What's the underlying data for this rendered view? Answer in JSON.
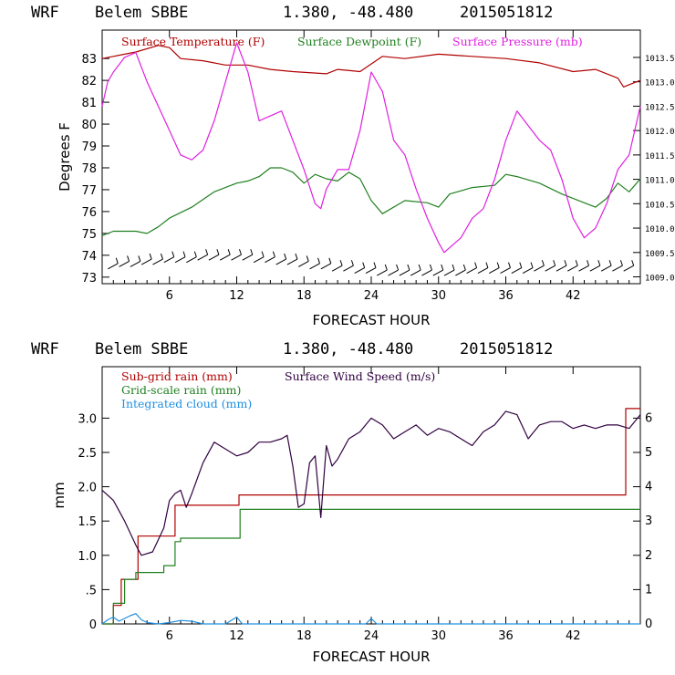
{
  "top_panel": {
    "header": {
      "model": "WRF",
      "station": "Belem SBBE",
      "coords": "1.380, -48.480",
      "run": "2015051812"
    },
    "xlabel": "FORECAST HOUR",
    "ylabel": "Degrees F",
    "x_ticks": [
      "6",
      "12",
      "18",
      "24",
      "30",
      "36",
      "42"
    ],
    "y_ticks": [
      "73",
      "74",
      "75",
      "76",
      "77",
      "78",
      "79",
      "80",
      "81",
      "82",
      "83"
    ],
    "y2_ticks": [
      "1009.0",
      "1009.5",
      "1010.0",
      "1010.5",
      "1011.0",
      "1011.5",
      "1012.0",
      "1012.5",
      "1013.0",
      "1013.5"
    ],
    "legend": [
      {
        "label": "Surface Temperature (F)",
        "color": "#b00000"
      },
      {
        "label": "Surface Dewpoint (F)",
        "color": "#208020"
      },
      {
        "label": "Surface Pressure (mb)",
        "color": "#e020e0"
      }
    ]
  },
  "bottom_panel": {
    "header": {
      "model": "WRF",
      "station": "Belem SBBE",
      "coords": "1.380, -48.480",
      "run": "2015051812"
    },
    "xlabel": "FORECAST HOUR",
    "ylabel": "mm",
    "x_ticks": [
      "6",
      "12",
      "18",
      "24",
      "30",
      "36",
      "42"
    ],
    "y_ticks": [
      "0",
      ".5",
      "1.0",
      "1.5",
      "2.0",
      "2.5",
      "3.0"
    ],
    "y2_ticks": [
      "0",
      "1",
      "2",
      "3",
      "4",
      "5",
      "6"
    ],
    "legend": [
      {
        "label": "Sub-grid rain (mm)",
        "color": "#b00000"
      },
      {
        "label": "Surface Wind Speed (m/s)",
        "color": "#300040"
      },
      {
        "label": "Grid-scale rain (mm)",
        "color": "#208020"
      },
      {
        "label": "Integrated cloud (mm)",
        "color": "#2090e0"
      }
    ]
  },
  "chart_data": [
    {
      "type": "line",
      "xlabel": "FORECAST HOUR",
      "ylabel": "Degrees F",
      "xlim": [
        0,
        48
      ],
      "ylim": [
        72.7,
        84.3
      ],
      "y2lim": [
        1008.86,
        1014.06
      ],
      "series": [
        {
          "name": "Surface Temperature (F)",
          "axis": "left",
          "color": "#b00000",
          "x": [
            0,
            1,
            3,
            5,
            6,
            7,
            9,
            11,
            13,
            15,
            17,
            20,
            21,
            23,
            25,
            27,
            30,
            33,
            36,
            39,
            42,
            44,
            46,
            46.5,
            48
          ],
          "y": [
            83.0,
            83.1,
            83.3,
            83.6,
            83.5,
            83.0,
            82.9,
            82.7,
            82.7,
            82.5,
            82.4,
            82.3,
            82.5,
            82.4,
            83.1,
            83.0,
            83.2,
            83.1,
            83.0,
            82.8,
            82.4,
            82.5,
            82.1,
            81.7,
            82.0
          ]
        },
        {
          "name": "Surface Dewpoint (F)",
          "axis": "left",
          "color": "#208020",
          "x": [
            0,
            1,
            2,
            3,
            4,
            5,
            6,
            8,
            10,
            12,
            13,
            14,
            15,
            16,
            17,
            18,
            19,
            20,
            21,
            22,
            23,
            24,
            25,
            27,
            29,
            30,
            31,
            33,
            35,
            36,
            37,
            39,
            41,
            43,
            44,
            45,
            46,
            47,
            48
          ],
          "y": [
            74.9,
            75.1,
            75.1,
            75.1,
            75.0,
            75.3,
            75.7,
            76.2,
            76.9,
            77.3,
            77.4,
            77.6,
            78.0,
            78.0,
            77.8,
            77.3,
            77.7,
            77.5,
            77.4,
            77.8,
            77.5,
            76.5,
            75.9,
            76.5,
            76.4,
            76.2,
            76.8,
            77.1,
            77.2,
            77.7,
            77.6,
            77.3,
            76.8,
            76.4,
            76.2,
            76.6,
            77.3,
            76.9,
            77.5
          ]
        },
        {
          "name": "Surface Pressure (mb)",
          "axis": "right",
          "color": "#e020e0",
          "x": [
            0,
            0.5,
            1,
            2,
            3,
            4,
            5,
            6,
            7,
            8,
            9,
            10,
            11,
            12,
            13,
            14,
            15,
            16,
            17,
            18,
            19,
            19.5,
            20,
            21,
            22,
            23,
            24,
            25,
            26,
            27,
            28,
            29,
            30,
            30.5,
            31,
            32,
            33,
            34,
            35,
            36,
            37,
            38,
            39,
            40,
            41,
            42,
            43,
            44,
            45,
            46,
            47,
            48
          ],
          "y": [
            1012.5,
            1013.0,
            1013.2,
            1013.5,
            1013.6,
            1013.0,
            1012.5,
            1012.0,
            1011.5,
            1011.4,
            1011.6,
            1012.2,
            1013.0,
            1013.8,
            1013.2,
            1012.2,
            1012.3,
            1012.4,
            1011.8,
            1011.2,
            1010.5,
            1010.4,
            1010.8,
            1011.2,
            1011.2,
            1012.0,
            1013.2,
            1012.8,
            1011.8,
            1011.5,
            1010.8,
            1010.2,
            1009.7,
            1009.5,
            1009.6,
            1009.8,
            1010.2,
            1010.4,
            1011.0,
            1011.8,
            1012.4,
            1012.1,
            1011.8,
            1011.6,
            1011.0,
            1010.2,
            1009.8,
            1010.0,
            1010.5,
            1011.2,
            1011.5,
            1012.5
          ]
        },
        {
          "name": "Wind barbs",
          "axis": "left",
          "color": "#000000",
          "x": [
            1,
            2,
            3,
            4,
            5,
            6,
            7,
            8,
            9,
            10,
            11,
            12,
            13,
            14,
            15,
            16,
            17,
            18,
            19,
            20,
            21,
            22,
            23,
            24,
            25,
            26,
            27,
            28,
            29,
            30,
            31,
            32,
            33,
            34,
            35,
            36,
            37,
            38,
            39,
            40,
            41,
            42,
            43,
            44,
            45,
            46,
            47
          ],
          "y": [
            73.5,
            73.6,
            73.6,
            73.7,
            73.7,
            73.8,
            73.8,
            73.8,
            73.9,
            73.9,
            73.9,
            73.9,
            73.9,
            73.8,
            73.8,
            73.7,
            73.7,
            73.6,
            73.5,
            73.5,
            73.4,
            73.4,
            73.3,
            73.3,
            73.2,
            73.2,
            73.2,
            73.2,
            73.2,
            73.2,
            73.2,
            73.2,
            73.3,
            73.3,
            73.3,
            73.3,
            73.3,
            73.3,
            73.4,
            73.4,
            73.4,
            73.4,
            73.4,
            73.4,
            73.4,
            73.4,
            73.4
          ]
        }
      ]
    },
    {
      "type": "line",
      "xlabel": "FORECAST HOUR",
      "ylabel": "mm",
      "xlim": [
        0,
        48
      ],
      "ylim": [
        0,
        3.75
      ],
      "y2lim": [
        0,
        7.5
      ],
      "series": [
        {
          "name": "Sub-grid rain (mm)",
          "axis": "left",
          "step": true,
          "color": "#b00000",
          "x": [
            0,
            1,
            1.7,
            2.3,
            3.2,
            5.5,
            6.5,
            12.2,
            46.7,
            48
          ],
          "y": [
            0,
            0.27,
            0.65,
            0.65,
            1.28,
            1.28,
            1.73,
            1.88,
            3.14,
            3.14
          ]
        },
        {
          "name": "Grid-scale rain (mm)",
          "axis": "left",
          "step": true,
          "color": "#208020",
          "x": [
            0,
            1,
            2,
            3,
            3.5,
            5.5,
            6.5,
            7,
            12,
            12.3,
            48
          ],
          "y": [
            0,
            0.3,
            0.65,
            0.75,
            0.75,
            0.85,
            1.2,
            1.25,
            1.25,
            1.67,
            1.67
          ]
        },
        {
          "name": "Integrated cloud (mm)",
          "axis": "left",
          "color": "#2090e0",
          "x": [
            0,
            0.5,
            1,
            1.5,
            2,
            2.5,
            3,
            3.5,
            4,
            5,
            6,
            7,
            8,
            9,
            11,
            11.5,
            12,
            12.5,
            13,
            18,
            22,
            23.5,
            24,
            24.5,
            26,
            30,
            35,
            38,
            40,
            48
          ],
          "y": [
            0,
            0.06,
            0.1,
            0.04,
            0.08,
            0.12,
            0.15,
            0.06,
            0.02,
            0.0,
            0.02,
            0.05,
            0.04,
            0.0,
            0.0,
            0.05,
            0.1,
            0.0,
            0.0,
            0.0,
            0.0,
            0.0,
            0.08,
            0.0,
            0.0,
            0.0,
            0.0,
            0.0,
            0.0,
            0.0
          ]
        },
        {
          "name": "Surface Wind Speed (m/s)",
          "axis": "right",
          "color": "#300040",
          "x": [
            0,
            1,
            2,
            3,
            3.5,
            4.5,
            5.5,
            6,
            6.5,
            7,
            7.5,
            8,
            9,
            10,
            11,
            12,
            13,
            14,
            15,
            16,
            16.5,
            17,
            17.5,
            18,
            18.5,
            19,
            19.5,
            20,
            20.5,
            21,
            22,
            23,
            24,
            25,
            26,
            27,
            28,
            29,
            30,
            31,
            32,
            33,
            34,
            35,
            36,
            37,
            38,
            39,
            40,
            41,
            42,
            43,
            44,
            45,
            46,
            47,
            48
          ],
          "y": [
            3.9,
            3.6,
            3.0,
            2.3,
            2.0,
            2.1,
            2.8,
            3.6,
            3.8,
            3.9,
            3.4,
            3.8,
            4.7,
            5.3,
            5.1,
            4.9,
            5.0,
            5.3,
            5.3,
            5.4,
            5.5,
            4.6,
            3.4,
            3.5,
            4.7,
            4.9,
            3.1,
            5.2,
            4.6,
            4.8,
            5.4,
            5.6,
            6.0,
            5.8,
            5.4,
            5.6,
            5.8,
            5.5,
            5.7,
            5.6,
            5.4,
            5.2,
            5.6,
            5.8,
            6.2,
            6.1,
            5.4,
            5.8,
            5.9,
            5.9,
            5.7,
            5.8,
            5.7,
            5.8,
            5.8,
            5.7,
            6.1
          ]
        }
      ]
    }
  ]
}
